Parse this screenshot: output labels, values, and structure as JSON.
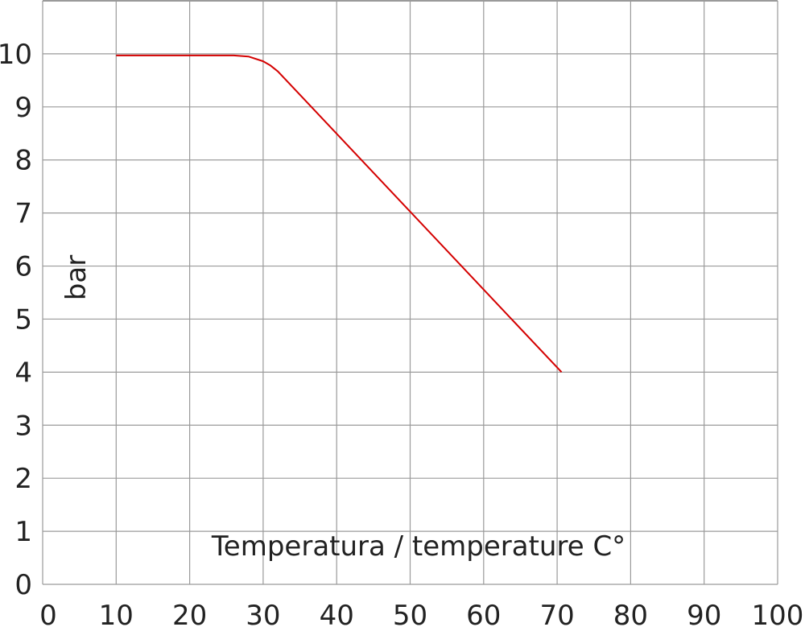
{
  "chart_data": {
    "type": "line",
    "title": "",
    "xlabel": "Temperatura / temperature C°",
    "ylabel": "bar",
    "xlim": [
      0,
      100
    ],
    "ylim": [
      0,
      11
    ],
    "xticks": [
      "0",
      "10",
      "20",
      "30",
      "40",
      "50",
      "60",
      "70",
      "80",
      "90",
      "100"
    ],
    "yticks": [
      "0",
      "1",
      "2",
      "3",
      "4",
      "5",
      "6",
      "7",
      "8",
      "9",
      "10"
    ],
    "grid": true,
    "series": [
      {
        "color": "#d40000",
        "x": [
          10,
          26,
          28,
          30,
          31,
          32,
          70.6
        ],
        "y": [
          9.97,
          9.97,
          9.95,
          9.86,
          9.78,
          9.67,
          4
        ]
      }
    ],
    "colors": {
      "grid": "#9a9a9a",
      "text": "#222222"
    }
  }
}
